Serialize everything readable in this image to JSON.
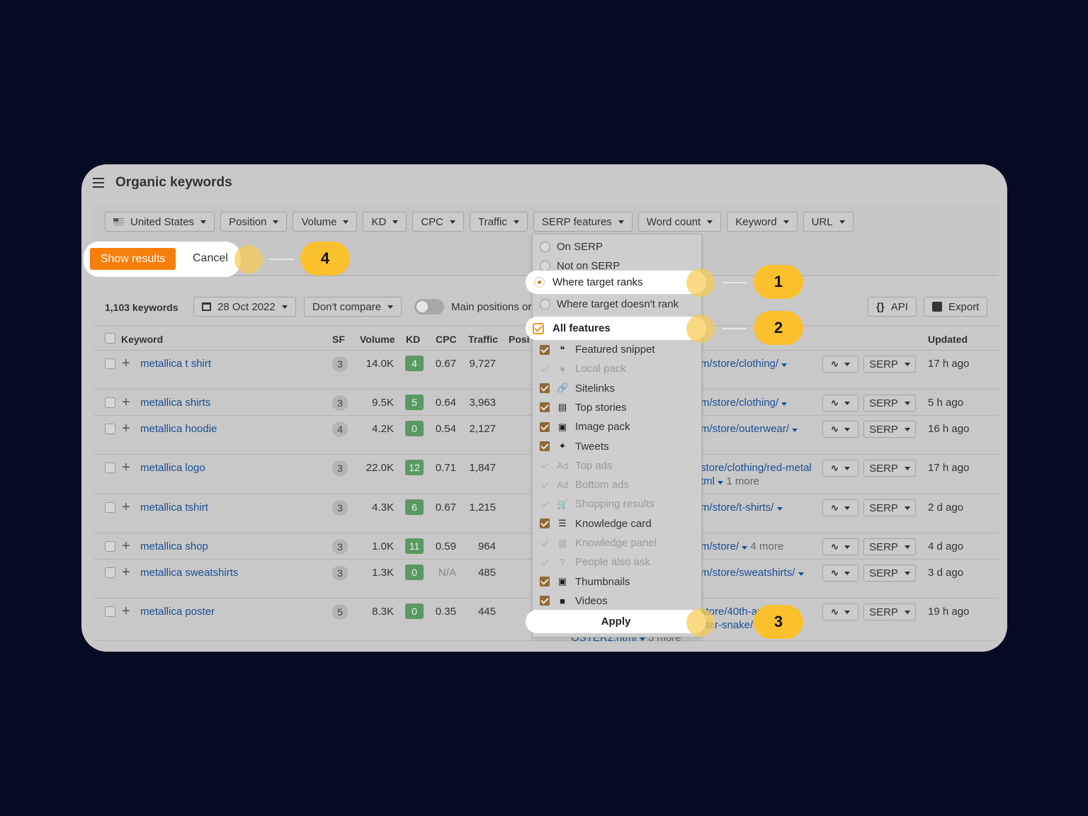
{
  "header": {
    "title": "Organic keywords"
  },
  "filters": [
    {
      "label": "United States",
      "flag": true
    },
    {
      "label": "Position"
    },
    {
      "label": "Volume"
    },
    {
      "label": "KD"
    },
    {
      "label": "CPC"
    },
    {
      "label": "Traffic"
    },
    {
      "label": "SERP features"
    },
    {
      "label": "Word count"
    },
    {
      "label": "Keyword"
    },
    {
      "label": "URL"
    }
  ],
  "actions": {
    "show_results": "Show results",
    "cancel": "Cancel"
  },
  "toolbar": {
    "keyword_count": "1,103 keywords",
    "date": "28 Oct 2022",
    "compare": "Don't compare",
    "main_positions": "Main positions or",
    "api": "API",
    "export": "Export"
  },
  "table": {
    "headers": {
      "keyword": "Keyword",
      "sf": "SF",
      "volume": "Volume",
      "kd": "KD",
      "cpc": "CPC",
      "traffic": "Traffic",
      "position": "Posi",
      "updated": "Updated"
    },
    "rows": [
      {
        "keyword": "metallica t shirt",
        "sf": "3",
        "volume": "14.0K",
        "kd": "4",
        "cpc": "0.67",
        "traffic": "9,727",
        "url": "m/store/clothing/",
        "url2": "",
        "more": "",
        "serp": "SERP",
        "updated": "17 h ago"
      },
      {
        "keyword": "metallica shirts",
        "sf": "3",
        "volume": "9.5K",
        "kd": "5",
        "cpc": "0.64",
        "traffic": "3,963",
        "url": "m/store/clothing/",
        "url2": "",
        "more": "",
        "serp": "SERP",
        "updated": "5 h ago"
      },
      {
        "keyword": "metallica hoodie",
        "sf": "4",
        "volume": "4.2K",
        "kd": "0",
        "cpc": "0.54",
        "traffic": "2,127",
        "url": "m/store/outerwear/",
        "url2": "",
        "more": "",
        "serp": "SERP",
        "updated": "16 h ago"
      },
      {
        "keyword": "metallica logo",
        "sf": "3",
        "volume": "22.0K",
        "kd": "12",
        "cpc": "0.71",
        "traffic": "1,847",
        "url": "store/clothing/red-metal",
        "url2": "tml",
        "more": "1 more",
        "serp": "SERP",
        "updated": "17 h ago"
      },
      {
        "keyword": "metallica tshirt",
        "sf": "3",
        "volume": "4.3K",
        "kd": "6",
        "cpc": "0.67",
        "traffic": "1,215",
        "url": "m/store/t-shirts/",
        "url2": "",
        "more": "",
        "serp": "SERP",
        "updated": "2 d ago"
      },
      {
        "keyword": "metallica shop",
        "sf": "3",
        "volume": "1.0K",
        "kd": "11",
        "cpc": "0.59",
        "traffic": "964",
        "url": "m/store/",
        "url2": "",
        "more": "4 more",
        "serp": "SERP",
        "updated": "4 d ago"
      },
      {
        "keyword": "metallica sweatshirts",
        "sf": "3",
        "volume": "1.3K",
        "kd": "0",
        "cpc": "N/A",
        "traffic": "485",
        "url": "m/store/sweatshirts/",
        "url2": "",
        "more": "",
        "serp": "SERP",
        "updated": "3 d ago"
      },
      {
        "keyword": "metallica poster",
        "sf": "5",
        "volume": "8.3K",
        "kd": "0",
        "cpc": "0.35",
        "traffic": "445",
        "url": "store/40th-ar",
        "url2": "ster-snake/",
        "more": "",
        "serp": "SERP",
        "updated": "19 h ago",
        "url3": "OSTER2.html",
        "more3": "3 more"
      }
    ]
  },
  "dropdown": {
    "radios": [
      "On SERP",
      "Not on SERP",
      "Where target ranks",
      "Where target doesn't rank"
    ],
    "all_features": "All features",
    "features": [
      {
        "label": "Featured snippet",
        "icon": "quote-icon",
        "glyph": "❝",
        "checked": true
      },
      {
        "label": "Local pack",
        "icon": "map-pin-icon",
        "glyph": "●",
        "checked": false
      },
      {
        "label": "Sitelinks",
        "icon": "link-icon",
        "glyph": "🔗",
        "checked": true
      },
      {
        "label": "Top stories",
        "icon": "newspaper-icon",
        "glyph": "▤",
        "checked": true
      },
      {
        "label": "Image pack",
        "icon": "image-icon",
        "glyph": "▣",
        "checked": true
      },
      {
        "label": "Tweets",
        "icon": "twitter-icon",
        "glyph": "✦",
        "checked": true
      },
      {
        "label": "Top ads",
        "icon": "ad-icon",
        "glyph": "Ad",
        "checked": false
      },
      {
        "label": "Bottom ads",
        "icon": "ad-icon",
        "glyph": "Ad",
        "checked": false
      },
      {
        "label": "Shopping results",
        "icon": "cart-icon",
        "glyph": "🛒",
        "checked": false
      },
      {
        "label": "Knowledge card",
        "icon": "list-icon",
        "glyph": "☰",
        "checked": true
      },
      {
        "label": "Knowledge panel",
        "icon": "panel-icon",
        "glyph": "▥",
        "checked": false
      },
      {
        "label": "People also ask",
        "icon": "question-icon",
        "glyph": "?",
        "checked": false
      },
      {
        "label": "Thumbnails",
        "icon": "thumbnail-icon",
        "glyph": "▣",
        "checked": true
      },
      {
        "label": "Videos",
        "icon": "video-icon",
        "glyph": "■",
        "checked": true
      }
    ],
    "apply": "Apply"
  },
  "steps": [
    "1",
    "2",
    "3",
    "4"
  ],
  "colors": {
    "accent": "#f57e0d",
    "step_badge": "#fbc02d",
    "kd_green": "#5a9a62",
    "link": "#1a4f96",
    "background": "#070a23"
  }
}
